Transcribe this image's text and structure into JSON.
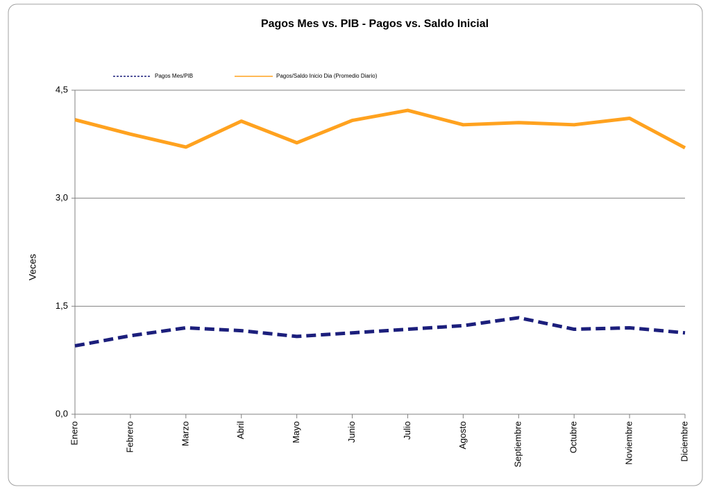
{
  "chart_data": {
    "type": "line",
    "title": "Pagos Mes vs. PIB  -  Pagos vs. Saldo Inicial",
    "y_label": "Veces",
    "categories": [
      "Enero",
      "Febrero",
      "Marzo",
      "Abril",
      "Mayo",
      "Junio",
      "Julio",
      "Agosto",
      "Septiembre",
      "Octubre",
      "Noviembre",
      "Diciembre"
    ],
    "series": [
      {
        "name": "Pagos Mes/PIB",
        "color": "#1c1f7c",
        "dashed": true,
        "values": [
          0.95,
          1.09,
          1.2,
          1.16,
          1.08,
          1.13,
          1.18,
          1.23,
          1.34,
          1.18,
          1.2,
          1.13
        ]
      },
      {
        "name": "Pagos/Saldo Inicio Dia (Promedio Diario)",
        "color": "#ffa21f",
        "dashed": false,
        "values": [
          4.09,
          3.89,
          3.71,
          4.07,
          3.77,
          4.08,
          4.22,
          4.02,
          4.05,
          4.02,
          4.11,
          3.7
        ]
      }
    ],
    "ylim": [
      0,
      4.5
    ],
    "yticks": [
      {
        "value": 0,
        "label": "0,0"
      },
      {
        "value": 1.5,
        "label": "1,5"
      },
      {
        "value": 3,
        "label": "3,0"
      },
      {
        "value": 4.5,
        "label": "4,5"
      }
    ],
    "grid": true,
    "legend": "top"
  }
}
